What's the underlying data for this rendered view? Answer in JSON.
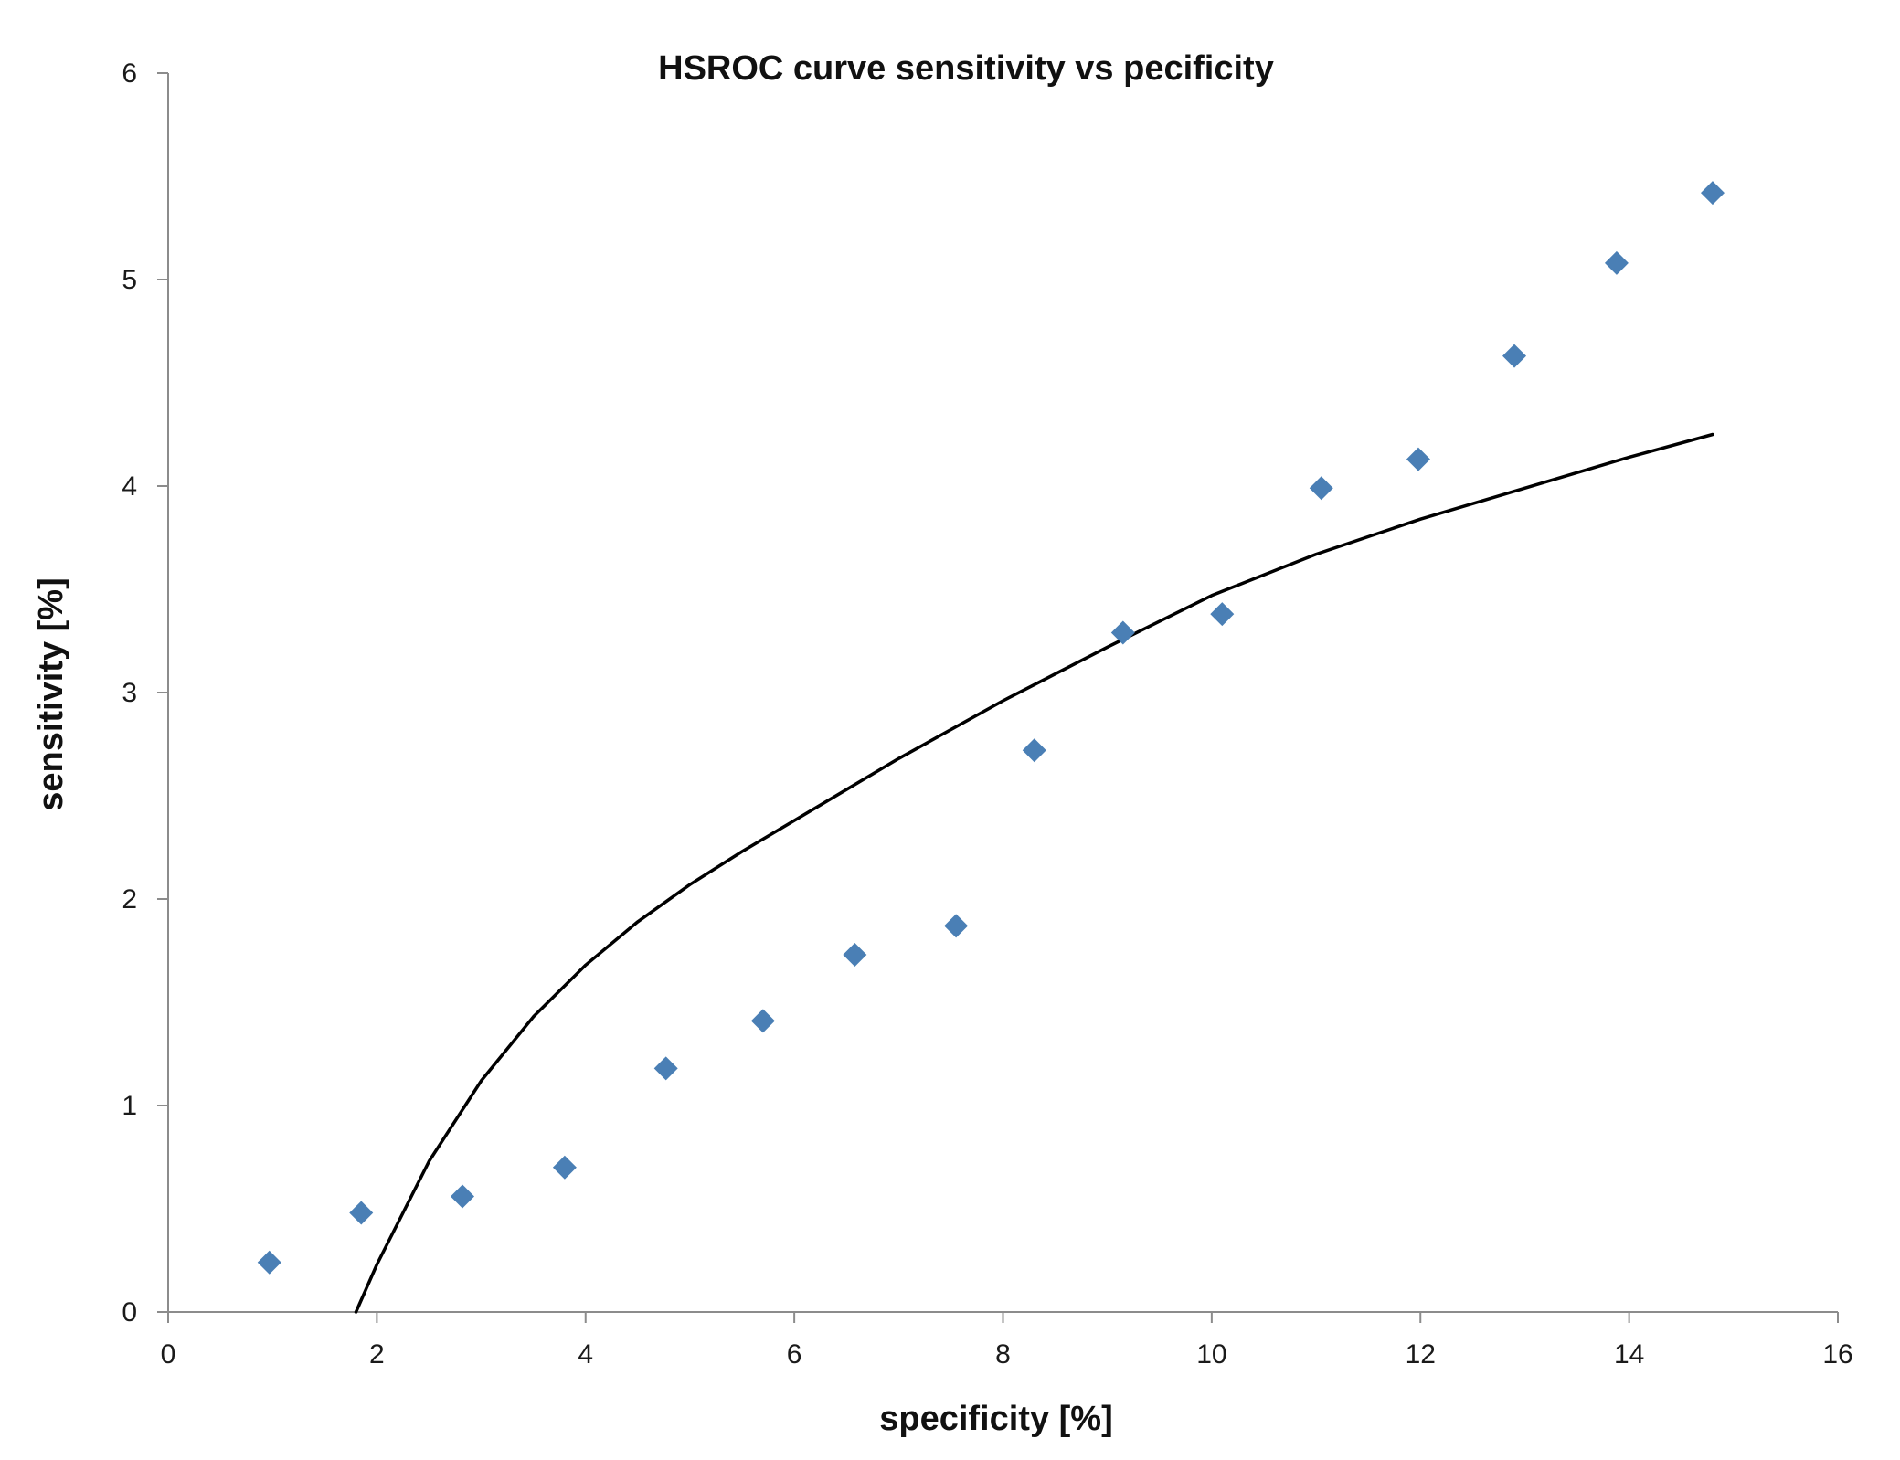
{
  "chart_data": {
    "type": "scatter",
    "title": "HSROC curve sensitivity vs pecificity",
    "xlabel": "specificity [%]",
    "ylabel": "sensitivity [%]",
    "xlim": [
      0,
      16
    ],
    "ylim": [
      0,
      6
    ],
    "xticks": [
      "0",
      "2",
      "4",
      "6",
      "8",
      "10",
      "12",
      "14",
      "16"
    ],
    "yticks": [
      "0",
      "1",
      "2",
      "3",
      "4",
      "5",
      "6"
    ],
    "grid": false,
    "legend": "none",
    "colors": {
      "points": "#4a7fb5",
      "curve": "#000000",
      "axis": "#8c8c8c"
    },
    "series": [
      {
        "kind": "points",
        "marker": "diamond",
        "x": [
          0.97,
          1.85,
          2.82,
          3.8,
          4.77,
          5.7,
          6.58,
          7.55,
          8.3,
          9.15,
          10.1,
          11.05,
          11.98,
          12.9,
          13.88,
          14.8
        ],
        "y": [
          0.24,
          0.48,
          0.56,
          0.7,
          1.18,
          1.41,
          1.73,
          1.87,
          2.72,
          3.29,
          3.38,
          3.99,
          4.13,
          4.63,
          5.08,
          5.42
        ]
      },
      {
        "kind": "curve",
        "x": [
          1.8,
          2.0,
          2.5,
          3.0,
          3.5,
          4.0,
          4.5,
          5.0,
          5.5,
          6.0,
          7.0,
          8.0,
          9.0,
          10.0,
          11.0,
          12.0,
          13.0,
          14.0,
          14.8
        ],
        "y": [
          0.0,
          0.23,
          0.73,
          1.12,
          1.43,
          1.68,
          1.89,
          2.07,
          2.23,
          2.38,
          2.68,
          2.96,
          3.22,
          3.47,
          3.67,
          3.84,
          3.99,
          4.14,
          4.25
        ]
      }
    ]
  }
}
